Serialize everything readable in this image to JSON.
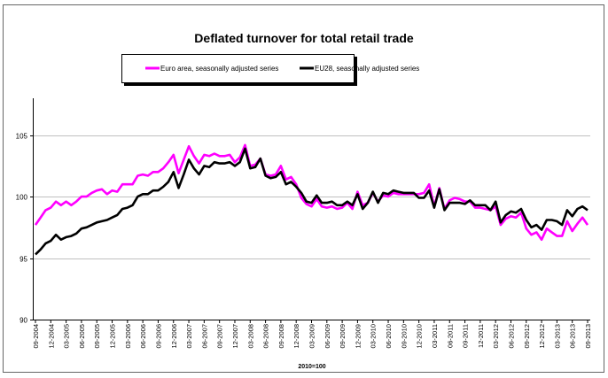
{
  "chart_data": {
    "type": "line",
    "title": "Deflated turnover for total retail trade",
    "xlabel": "2010=100",
    "ylabel": "",
    "ylim": [
      90,
      108
    ],
    "yticks": [
      90,
      95,
      100,
      105
    ],
    "grid": true,
    "legend_placement": "top-center",
    "start_month": "09-2004",
    "end_month": "09-2013",
    "x_tick_labels": [
      "09-2004",
      "12-2004",
      "03-2005",
      "06-2005",
      "09-2005",
      "12-2005",
      "03-2006",
      "06-2006",
      "09-2006",
      "12-2006",
      "03-2007",
      "06-2007",
      "09-2007",
      "12-2007",
      "03-2008",
      "06-2008",
      "09-2008",
      "12-2008",
      "03-2009",
      "06-2009",
      "09-2009",
      "12-2009",
      "03-2010",
      "06-2010",
      "09-2010",
      "12-2010",
      "03-2011",
      "06-2011",
      "09-2011",
      "12-2011",
      "03-2012",
      "06-2012",
      "09-2012",
      "12-2012",
      "03-2013",
      "06-2013",
      "09-2013"
    ],
    "series": [
      {
        "name": "Euro area, seasonally adjusted series",
        "color": "#ff00ff",
        "values": [
          97.7,
          98.3,
          98.9,
          99.1,
          99.6,
          99.3,
          99.6,
          99.3,
          99.6,
          100,
          100,
          100.3,
          100.5,
          100.6,
          100.2,
          100.5,
          100.4,
          101,
          101,
          101,
          101.7,
          101.8,
          101.7,
          102,
          102,
          102.3,
          102.8,
          103.4,
          101.9,
          103,
          104.1,
          103.3,
          102.7,
          103.4,
          103.3,
          103.5,
          103.3,
          103.3,
          103.4,
          102.8,
          103.2,
          104.2,
          102.5,
          102.6,
          103.1,
          101.8,
          101.7,
          101.8,
          102.5,
          101.4,
          101.6,
          101,
          99.9,
          99.4,
          99.2,
          99.8,
          99.2,
          99.1,
          99.2,
          99,
          99.1,
          99.5,
          99,
          100.4,
          99.3,
          99.5,
          100.3,
          99.6,
          100.1,
          100,
          100.3,
          100.2,
          100.2,
          100.2,
          100.2,
          100.2,
          100.3,
          101,
          99.2,
          100.7,
          99,
          99.7,
          99.9,
          99.8,
          99.6,
          99.6,
          99.1,
          99.1,
          99,
          98.9,
          99.2,
          97.7,
          98.2,
          98.4,
          98.3,
          98.7,
          97.4,
          96.9,
          97.1,
          96.5,
          97.4,
          97.1,
          96.8,
          96.8,
          98,
          97.2,
          97.8,
          98.3,
          97.7
        ]
      },
      {
        "name": "EU28, seasonally adjusted series",
        "color": "#000000",
        "values": [
          95.3,
          95.7,
          96.2,
          96.4,
          96.9,
          96.5,
          96.7,
          96.8,
          97,
          97.4,
          97.5,
          97.7,
          97.9,
          98,
          98.1,
          98.3,
          98.5,
          99,
          99.1,
          99.3,
          100,
          100.2,
          100.2,
          100.5,
          100.5,
          100.8,
          101.2,
          102,
          100.7,
          101.8,
          103,
          102.3,
          101.8,
          102.5,
          102.4,
          102.8,
          102.7,
          102.7,
          102.8,
          102.5,
          102.8,
          103.9,
          102.3,
          102.4,
          103.1,
          101.7,
          101.5,
          101.6,
          102,
          101,
          101.2,
          100.8,
          100.3,
          99.6,
          99.5,
          100.1,
          99.5,
          99.5,
          99.6,
          99.3,
          99.3,
          99.6,
          99.3,
          100.2,
          99,
          99.5,
          100.4,
          99.5,
          100.3,
          100.2,
          100.5,
          100.4,
          100.3,
          100.3,
          100.3,
          99.9,
          99.9,
          100.5,
          99.1,
          100.6,
          98.9,
          99.5,
          99.5,
          99.5,
          99.4,
          99.7,
          99.3,
          99.3,
          99.3,
          98.9,
          99.6,
          97.9,
          98.5,
          98.8,
          98.7,
          99,
          98.1,
          97.5,
          97.7,
          97.3,
          98.1,
          98.1,
          98,
          97.7,
          98.9,
          98.4,
          99,
          99.2,
          98.9
        ]
      }
    ]
  }
}
